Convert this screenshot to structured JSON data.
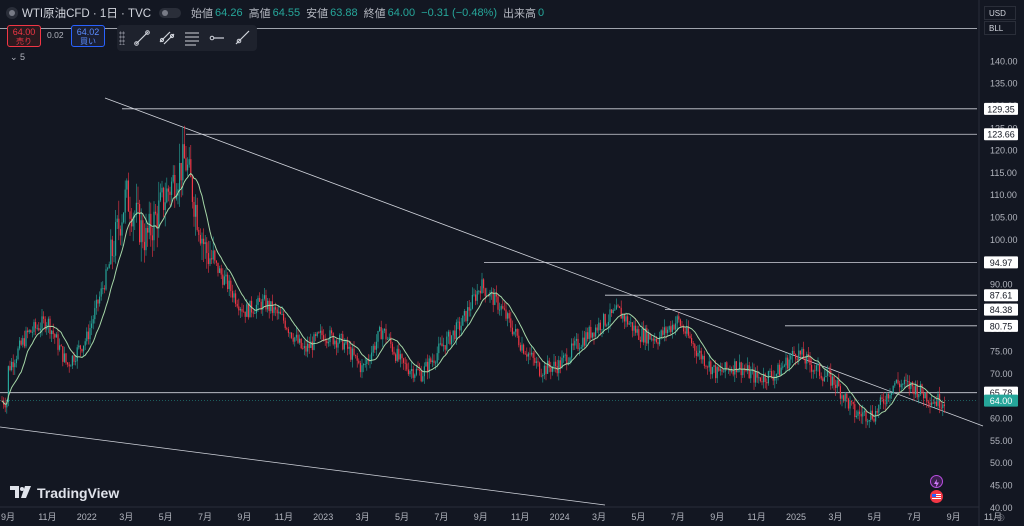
{
  "header": {
    "symbol": "WTI原油CFD · 1日 · TVC",
    "open_label": "始値",
    "open": "64.26",
    "high_label": "高値",
    "high": "64.55",
    "low_label": "安値",
    "low": "63.88",
    "close_label": "終値",
    "close": "64.00",
    "change": "−0.31 (−0.48%)",
    "volume_label": "出来高",
    "volume": "0"
  },
  "trade": {
    "sell_price": "64.00",
    "sell_label": "売り",
    "spread": "0.02",
    "buy_price": "64.02",
    "buy_label": "買い"
  },
  "indicator_count": "5",
  "currency": "USD",
  "unit": "BLL",
  "brand": "TradingView",
  "colors": {
    "background": "#131722",
    "up": "#26a69a",
    "down": "#f23645",
    "ma": "#a5d6a7",
    "line": "#d1d4dc",
    "last_price": "#26a69a"
  },
  "chart_data": {
    "type": "line",
    "series": [
      {
        "x": [
          "2021-09",
          "2021-10",
          "2021-11",
          "2021-12",
          "2022-01",
          "2022-02",
          "2022-03",
          "2022-04",
          "2022-05",
          "2022-06",
          "2022-07",
          "2022-08",
          "2022-09",
          "2022-10",
          "2022-11",
          "2022-12",
          "2023-01",
          "2023-02",
          "2023-03",
          "2023-04",
          "2023-05",
          "2023-06",
          "2023-07",
          "2023-08",
          "2023-09",
          "2023-10",
          "2023-11",
          "2023-12",
          "2024-01",
          "2024-02",
          "2024-03",
          "2024-04",
          "2024-05",
          "2024-06",
          "2024-07",
          "2024-08",
          "2024-09",
          "2024-10",
          "2024-11",
          "2024-12",
          "2025-01",
          "2025-02",
          "2025-03",
          "2025-04",
          "2025-05",
          "2025-06",
          "2025-07",
          "2025-08"
        ],
        "values": [
          71,
          79,
          82,
          72,
          78,
          92,
          110,
          100,
          110,
          118,
          98,
          91,
          84,
          86,
          82,
          75,
          79,
          77,
          71,
          80,
          72,
          70,
          76,
          81,
          90,
          85,
          77,
          71,
          72,
          77,
          81,
          84,
          79,
          78,
          82,
          75,
          70,
          72,
          69,
          70,
          75,
          71,
          68,
          61,
          61,
          68,
          67,
          64
        ]
      }
    ],
    "horizontal_levels": [
      129.35,
      123.66,
      94.97,
      87.61,
      84.38,
      80.75,
      65.78
    ],
    "last_price": 64.0,
    "y_ticks": [
      140,
      135,
      130,
      125,
      120,
      115,
      110,
      105,
      100,
      95,
      90,
      85,
      80,
      75,
      70,
      65,
      60,
      55,
      50,
      45,
      40
    ],
    "ylim": [
      38.3,
      150.5
    ],
    "x_ticks": [
      "9月",
      "11月",
      "2022",
      "3月",
      "5月",
      "7月",
      "9月",
      "11月",
      "2023",
      "3月",
      "5月",
      "7月",
      "9月",
      "11月",
      "2024",
      "3月",
      "5月",
      "7月",
      "9月",
      "11月",
      "2025",
      "3月",
      "5月",
      "7月",
      "9月",
      "11月"
    ],
    "grid": false
  }
}
